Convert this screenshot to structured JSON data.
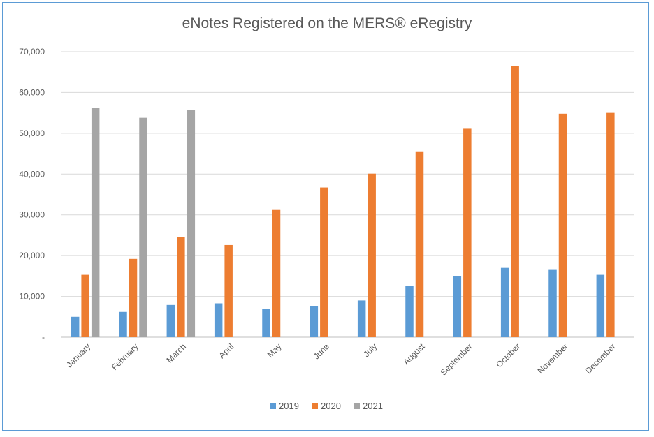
{
  "chart_data": {
    "type": "bar",
    "title": "eNotes Registered on the MERS® eRegistry",
    "xlabel": "",
    "ylabel": "",
    "categories": [
      "January",
      "February",
      "March",
      "April",
      "May",
      "June",
      "July",
      "August",
      "September",
      "October",
      "November",
      "December"
    ],
    "ylim": [
      0,
      70000
    ],
    "yticks": [
      0,
      10000,
      20000,
      30000,
      40000,
      50000,
      60000,
      70000
    ],
    "ytick_labels": [
      "-",
      "10,000",
      "20,000",
      "30,000",
      "40,000",
      "50,000",
      "60,000",
      "70,000"
    ],
    "grid": true,
    "legend_position": "bottom",
    "series": [
      {
        "name": "2019",
        "color": "#5b9bd5",
        "values": [
          5000,
          6200,
          7900,
          8300,
          6900,
          7600,
          9000,
          12500,
          14900,
          17000,
          16500,
          15300
        ]
      },
      {
        "name": "2020",
        "color": "#ed7d31",
        "values": [
          15300,
          19200,
          24500,
          22600,
          31200,
          36700,
          40100,
          45400,
          51100,
          66500,
          54800,
          55000
        ]
      },
      {
        "name": "2021",
        "color": "#a5a5a5",
        "values": [
          56200,
          53800,
          55700,
          null,
          null,
          null,
          null,
          null,
          null,
          null,
          null,
          null
        ]
      }
    ]
  }
}
